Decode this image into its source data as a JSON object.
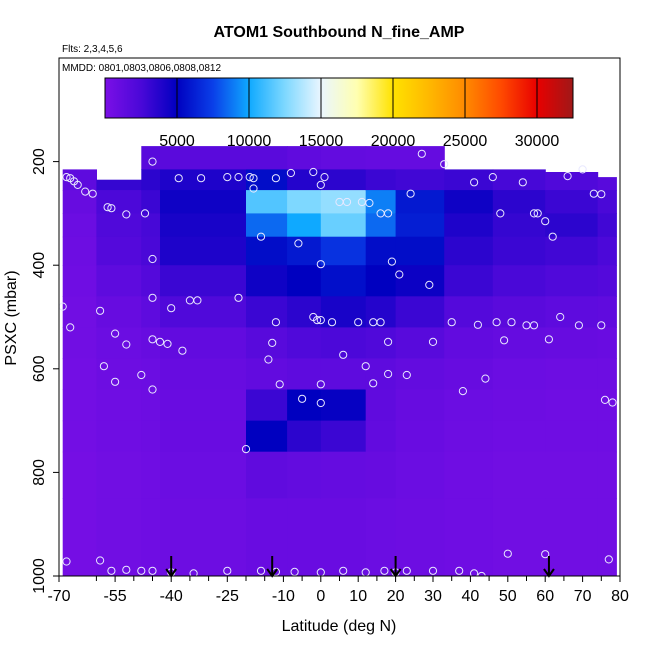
{
  "chart_data": {
    "type": "heatmap",
    "title": "ATOM1 Southbound N_fine_AMP",
    "subtitle_flights": "Flts: 2,3,4,5,6",
    "subtitle_dates": "MMDD: 0801,0803,0806,0808,0812",
    "xlabel": "Latitude (deg N)",
    "ylabel": "PSXC (mbar)",
    "xlim": [
      -70,
      80
    ],
    "ylim": [
      1000,
      0
    ],
    "x_ticks": [
      -70,
      -55,
      -40,
      -25,
      -10,
      0,
      10,
      20,
      30,
      40,
      50,
      60,
      70,
      80
    ],
    "x_tick_labels": [
      "-70",
      "-55",
      "-40",
      "-25",
      "-10",
      "0",
      "10",
      "20",
      "30",
      "40",
      "50",
      "60",
      "70",
      "80"
    ],
    "x_minor_ticks": [
      -60,
      -50,
      -45,
      -35,
      -30,
      -20,
      -15,
      -5,
      5,
      15,
      25,
      35,
      45,
      55,
      65,
      75
    ],
    "y_ticks": [
      200,
      400,
      600,
      800,
      1000
    ],
    "y_tick_labels": [
      "200",
      "400",
      "600",
      "800",
      "1000"
    ],
    "colorbar": {
      "range": [
        0,
        32500
      ],
      "ticks": [
        5000,
        10000,
        15000,
        20000,
        25000,
        30000
      ],
      "tick_labels": [
        "5000",
        "10000",
        "15000",
        "20000",
        "25000",
        "30000"
      ],
      "stops": [
        {
          "v": 0,
          "c": "#7B0FE6"
        },
        {
          "v": 2500,
          "c": "#4A08D8"
        },
        {
          "v": 5000,
          "c": "#0000C0"
        },
        {
          "v": 7500,
          "c": "#0A3FE8"
        },
        {
          "v": 10000,
          "c": "#0FA9FF"
        },
        {
          "v": 12500,
          "c": "#7ED8FF"
        },
        {
          "v": 15000,
          "c": "#EAF6FF"
        },
        {
          "v": 17500,
          "c": "#FFFFB0"
        },
        {
          "v": 20000,
          "c": "#FFE200"
        },
        {
          "v": 22500,
          "c": "#FFB800"
        },
        {
          "v": 25000,
          "c": "#FF8A00"
        },
        {
          "v": 27500,
          "c": "#FF4A00"
        },
        {
          "v": 30000,
          "c": "#E80000"
        },
        {
          "v": 32500,
          "c": "#A01818"
        }
      ]
    },
    "heatmap": {
      "columns": [
        {
          "lat0": -69,
          "lat1": -60,
          "p0": 215,
          "p1": 1000
        },
        {
          "lat0": -60,
          "lat1": -48,
          "p0": 235,
          "p1": 1000
        },
        {
          "lat0": -48,
          "lat1": -43,
          "p0": 170,
          "p1": 1000
        },
        {
          "lat0": -43,
          "lat1": -20,
          "p0": 170,
          "p1": 1000
        },
        {
          "lat0": -20,
          "lat1": -9,
          "p0": 170,
          "p1": 1000
        },
        {
          "lat0": -9,
          "lat1": 0,
          "p0": 170,
          "p1": 1000
        },
        {
          "lat0": 0,
          "lat1": 12,
          "p0": 170,
          "p1": 1000
        },
        {
          "lat0": 12,
          "lat1": 20,
          "p0": 170,
          "p1": 1000
        },
        {
          "lat0": 20,
          "lat1": 33,
          "p0": 170,
          "p1": 1000
        },
        {
          "lat0": 33,
          "lat1": 46,
          "p0": 215,
          "p1": 1000
        },
        {
          "lat0": 46,
          "lat1": 60,
          "p0": 215,
          "p1": 1000
        },
        {
          "lat0": 60,
          "lat1": 74,
          "p0": 220,
          "p1": 1000
        },
        {
          "lat0": 74,
          "lat1": 79,
          "p0": 230,
          "p1": 1000
        }
      ],
      "pressure_levels": [
        170,
        215,
        255,
        300,
        345,
        400,
        460,
        520,
        580,
        640,
        700,
        760,
        850,
        1000
      ],
      "values": [
        [
          null,
          2000,
          1800,
          1700,
          1700,
          1400,
          1200,
          1100,
          1100,
          1000,
          900,
          900,
          800
        ],
        [
          1500,
          3200,
          3500,
          4000,
          5500,
          3800,
          3500,
          3000,
          2800,
          3000,
          2600,
          2200,
          1800
        ],
        [
          1000,
          2400,
          3000,
          4500,
          11500,
          12500,
          13000,
          9000,
          6000,
          4500,
          3500,
          3000,
          2500
        ],
        [
          800,
          2200,
          2600,
          4200,
          8500,
          10000,
          12000,
          8500,
          6200,
          4000,
          3200,
          3500,
          2800
        ],
        [
          700,
          2000,
          2500,
          4000,
          5500,
          6000,
          7000,
          5500,
          5500,
          3500,
          3000,
          2800,
          2400
        ],
        [
          600,
          1500,
          2000,
          3000,
          4500,
          5000,
          5600,
          5000,
          4600,
          3000,
          2500,
          2200,
          2000
        ],
        [
          500,
          1000,
          1500,
          2200,
          3000,
          3500,
          4200,
          3800,
          3000,
          2000,
          1700,
          1500,
          1400
        ],
        [
          500,
          800,
          1000,
          1300,
          1800,
          2200,
          2400,
          2200,
          1800,
          1300,
          1100,
          1000,
          900
        ],
        [
          400,
          700,
          800,
          1000,
          1300,
          1500,
          1500,
          1500,
          1200,
          1000,
          800,
          700,
          700
        ],
        [
          400,
          600,
          700,
          900,
          3000,
          5000,
          4800,
          1400,
          1000,
          800,
          700,
          600,
          600
        ],
        [
          400,
          600,
          700,
          900,
          5000,
          3500,
          3000,
          1300,
          900,
          700,
          600,
          600,
          600
        ],
        [
          300,
          500,
          600,
          800,
          1400,
          1200,
          1100,
          1000,
          800,
          600,
          500,
          500,
          500
        ],
        [
          300,
          500,
          600,
          700,
          900,
          900,
          900,
          800,
          700,
          600,
          500,
          500,
          500
        ]
      ]
    },
    "sample_points": [
      [
        -68,
        230
      ],
      [
        -67,
        232
      ],
      [
        -66,
        238
      ],
      [
        -65,
        245
      ],
      [
        -63,
        258
      ],
      [
        -61,
        262
      ],
      [
        -57,
        288
      ],
      [
        -56,
        290
      ],
      [
        -52,
        302
      ],
      [
        -47,
        300
      ],
      [
        -45,
        200
      ],
      [
        -38,
        232
      ],
      [
        -32,
        232
      ],
      [
        -25,
        230
      ],
      [
        -22,
        230
      ],
      [
        -19,
        230
      ],
      [
        -18,
        232
      ],
      [
        -12,
        232
      ],
      [
        -18,
        252
      ],
      [
        -16,
        345
      ],
      [
        -8,
        222
      ],
      [
        -2,
        220
      ],
      [
        1,
        230
      ],
      [
        0,
        245
      ],
      [
        5,
        278
      ],
      [
        7,
        278
      ],
      [
        11,
        278
      ],
      [
        13,
        280
      ],
      [
        16,
        300
      ],
      [
        18,
        300
      ],
      [
        24,
        262
      ],
      [
        27,
        185
      ],
      [
        33,
        205
      ],
      [
        41,
        240
      ],
      [
        46,
        230
      ],
      [
        48,
        300
      ],
      [
        54,
        240
      ],
      [
        57,
        300
      ],
      [
        58,
        300
      ],
      [
        60,
        315
      ],
      [
        62,
        345
      ],
      [
        66,
        228
      ],
      [
        70,
        215
      ],
      [
        73,
        262
      ],
      [
        75,
        263
      ],
      [
        -45,
        388
      ],
      [
        -6,
        358
      ],
      [
        0,
        398
      ],
      [
        19,
        393
      ],
      [
        21,
        418
      ],
      [
        29,
        438
      ],
      [
        -69,
        480
      ],
      [
        -67,
        520
      ],
      [
        -59,
        488
      ],
      [
        -55,
        532
      ],
      [
        -52,
        553
      ],
      [
        -45,
        463
      ],
      [
        -45,
        543
      ],
      [
        -43,
        548
      ],
      [
        -40,
        483
      ],
      [
        -37,
        565
      ],
      [
        -35,
        468
      ],
      [
        -33,
        468
      ],
      [
        -22,
        463
      ],
      [
        -13,
        550
      ],
      [
        -12,
        510
      ],
      [
        -2,
        500
      ],
      [
        -1,
        506
      ],
      [
        0,
        506
      ],
      [
        3,
        510
      ],
      [
        6,
        573
      ],
      [
        10,
        510
      ],
      [
        12,
        595
      ],
      [
        14,
        510
      ],
      [
        18,
        548
      ],
      [
        16,
        510
      ],
      [
        30,
        548
      ],
      [
        35,
        510
      ],
      [
        42,
        515
      ],
      [
        47,
        510
      ],
      [
        49,
        545
      ],
      [
        51,
        510
      ],
      [
        55,
        516
      ],
      [
        57,
        516
      ],
      [
        61,
        543
      ],
      [
        64,
        500
      ],
      [
        69,
        516
      ],
      [
        75,
        516
      ],
      [
        -58,
        595
      ],
      [
        -55,
        625
      ],
      [
        -48,
        612
      ],
      [
        -45,
        640
      ],
      [
        -41,
        552
      ],
      [
        -14,
        582
      ],
      [
        -11,
        630
      ],
      [
        -5,
        658
      ],
      [
        0,
        630
      ],
      [
        0,
        666
      ],
      [
        14,
        628
      ],
      [
        18,
        610
      ],
      [
        23,
        612
      ],
      [
        38,
        643
      ],
      [
        44,
        619
      ],
      [
        76,
        660
      ],
      [
        78,
        665
      ],
      [
        -20,
        755
      ],
      [
        -68,
        972
      ],
      [
        -59,
        970
      ],
      [
        -56,
        990
      ],
      [
        -52,
        988
      ],
      [
        -48,
        990
      ],
      [
        -45,
        990
      ],
      [
        -40,
        993
      ],
      [
        -34,
        995
      ],
      [
        -25,
        990
      ],
      [
        -16,
        990
      ],
      [
        -12,
        992
      ],
      [
        -7,
        992
      ],
      [
        0,
        993
      ],
      [
        6,
        990
      ],
      [
        12,
        993
      ],
      [
        17,
        990
      ],
      [
        20,
        993
      ],
      [
        23,
        990
      ],
      [
        30,
        990
      ],
      [
        37,
        990
      ],
      [
        41,
        995
      ],
      [
        43,
        1000
      ],
      [
        50,
        957
      ],
      [
        60,
        958
      ],
      [
        77,
        968
      ]
    ],
    "arrows": [
      {
        "lat": -40
      },
      {
        "lat": -13
      },
      {
        "lat": 20
      },
      {
        "lat": 61
      }
    ]
  }
}
